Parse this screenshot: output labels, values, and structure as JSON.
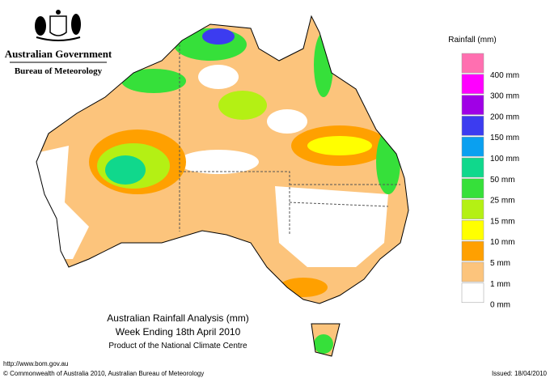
{
  "header": {
    "government": "Australian Government",
    "agency": "Bureau of Meteorology"
  },
  "map": {
    "title": "Australian Rainfall Analysis (mm)",
    "subtitle": "Week Ending 18th April 2010",
    "credit": "Product of the National Climate Centre"
  },
  "legend": {
    "title": "Rainfall (mm)",
    "colors": [
      "#ff6fb0",
      "#ff00ff",
      "#a000e6",
      "#3c3cf0",
      "#0aa0f0",
      "#10d88c",
      "#36e03a",
      "#b4f014",
      "#ffff00",
      "#ffa000",
      "#fcc47c",
      "#ffffff"
    ],
    "labels": [
      "400 mm",
      "300 mm",
      "200 mm",
      "150 mm",
      "100 mm",
      "50 mm",
      "25 mm",
      "15 mm",
      "10 mm",
      "5 mm",
      "1 mm",
      "0 mm"
    ]
  },
  "footer": {
    "url": "http://www.bom.gov.au",
    "copyright": "© Commonwealth of Australia 2010, Australian Bureau of Meteorology",
    "issued": "Issued: 18/04/2010"
  }
}
